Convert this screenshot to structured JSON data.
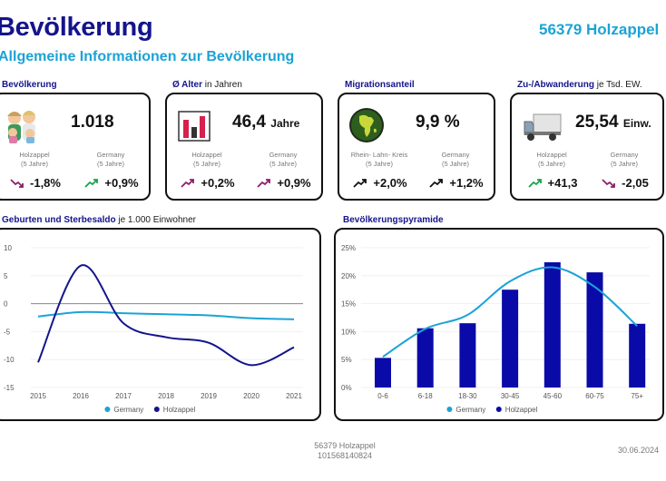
{
  "header": {
    "title": "Bevölkerung",
    "subtitle": "Allgemeine Informationen zur Bevölkerung",
    "place": "56379 Holzappel"
  },
  "cards": [
    {
      "caption_bold": "Bevölkerung",
      "caption_rest": "",
      "icon": "family-icon",
      "value": "1.018",
      "unit": "",
      "left_label": "Holzappel\n(5 Jahre)",
      "right_label": "Germany\n(5 Jahre)",
      "left_change": "-1,8%",
      "left_trend": "down",
      "right_change": "+0,9%",
      "right_trend": "up-green"
    },
    {
      "caption_bold": "Ø Alter",
      "caption_rest": " in Jahren",
      "icon": "bar-chart-icon",
      "value": "46,4",
      "unit": "Jahre",
      "left_label": "Holzappel\n(5 Jahre)",
      "right_label": "Germany\n(5 Jahre)",
      "left_change": "+0,2%",
      "left_trend": "up-purple",
      "right_change": "+0,9%",
      "right_trend": "up-purple"
    },
    {
      "caption_bold": "Migrationsanteil",
      "caption_rest": "",
      "icon": "globe-icon",
      "value": "9,9 %",
      "unit": "",
      "left_label": "Rhein- Lahn- Kreis\n(5 Jahre)",
      "right_label": "Germany\n(5 Jahre)",
      "left_change": "+2,0%",
      "left_trend": "up-black",
      "right_change": "+1,2%",
      "right_trend": "up-black"
    },
    {
      "caption_bold": "Zu-/Abwanderung",
      "caption_rest": " je Tsd. EW.",
      "icon": "truck-icon",
      "value": "25,54",
      "unit": "Einw.",
      "left_label": "Holzappel\n(5 Jahre)",
      "right_label": "Germany\n(5 Jahre)",
      "left_change": "+41,3",
      "left_trend": "up-green",
      "right_change": "-2,05",
      "right_trend": "down"
    }
  ],
  "panels": {
    "births": {
      "caption_bold": "Geburten und Sterbesaldo",
      "caption_rest": " je 1.000 Einwohner"
    },
    "pyramid": {
      "caption_bold": "Bevölkerungspyramide",
      "caption_rest": ""
    }
  },
  "colors": {
    "navy": "#14148c",
    "cyan": "#1ba3d6",
    "bar": "#0a0aa8",
    "green": "#16a34a",
    "purple": "#8a1e6a"
  },
  "chart_data": [
    {
      "type": "line",
      "title": "Geburten und Sterbesaldo",
      "x": [
        2015,
        2016,
        2017,
        2018,
        2019,
        2020,
        2021
      ],
      "x_tick_labels": [
        "2015",
        "2016",
        "2017",
        "2018",
        "2019",
        "2020",
        "2021"
      ],
      "y_ticks": [
        10,
        5,
        0,
        -5,
        -10,
        -15
      ],
      "y_tick_labels": [
        "10",
        "5",
        "0",
        "-5",
        "-10",
        "-15"
      ],
      "ylim": [
        -15,
        10
      ],
      "series": [
        {
          "name": "Germany",
          "color": "#1ba3d6",
          "values": [
            -2.3,
            -1.5,
            -1.7,
            -1.9,
            -2.1,
            -2.6,
            -2.8
          ]
        },
        {
          "name": "Holzappel",
          "color": "#14148c",
          "values": [
            -10.5,
            6.8,
            -3.5,
            -6.0,
            -7.0,
            -11.0,
            -7.8
          ]
        }
      ],
      "legend": "bottom"
    },
    {
      "type": "bar",
      "title": "Bevölkerungspyramide",
      "categories": [
        "0-6",
        "6-18",
        "18-30",
        "30-45",
        "45-60",
        "60-75",
        "75+"
      ],
      "y_ticks": [
        0,
        5,
        10,
        15,
        20,
        25
      ],
      "y_tick_labels": [
        "0%",
        "5%",
        "10%",
        "15%",
        "20%",
        "25%"
      ],
      "ylim": [
        0,
        25
      ],
      "series": [
        {
          "name": "Germany",
          "type": "line",
          "color": "#1ba3d6",
          "values": [
            5.5,
            10.5,
            13.0,
            19.0,
            21.5,
            18.0,
            11.0
          ]
        },
        {
          "name": "Holzappel",
          "type": "bar",
          "color": "#0a0aa8",
          "values": [
            5.3,
            10.6,
            11.5,
            17.5,
            22.4,
            20.6,
            11.4
          ]
        }
      ],
      "legend": "bottom"
    }
  ],
  "footer": {
    "place": "56379 Holzappel",
    "code": "101568140824",
    "date": "30.06.2024"
  }
}
